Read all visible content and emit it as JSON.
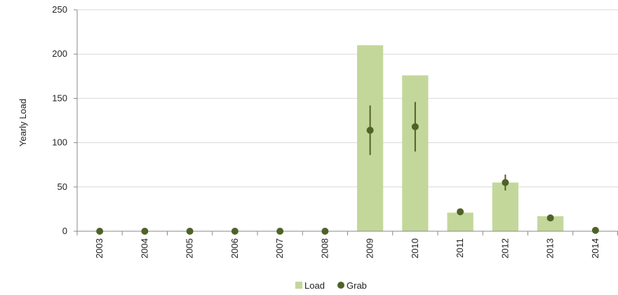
{
  "chart_data": {
    "type": "bar",
    "categories": [
      "2003",
      "2004",
      "2005",
      "2006",
      "2007",
      "2008",
      "2009",
      "2010",
      "2011",
      "2012",
      "2013",
      "2014"
    ],
    "series": [
      {
        "name": "Load",
        "type": "bar",
        "values": [
          0,
          0,
          0,
          0,
          0,
          0,
          210,
          176,
          21,
          55,
          17,
          0
        ]
      },
      {
        "name": "Grab",
        "type": "scatter",
        "values": [
          0,
          0,
          0,
          0,
          0,
          0,
          114,
          118,
          22,
          55,
          15,
          1
        ],
        "error_low": [
          null,
          null,
          null,
          null,
          null,
          null,
          86,
          90,
          19,
          46,
          14,
          null
        ],
        "error_high": [
          null,
          null,
          null,
          null,
          null,
          null,
          142,
          146,
          25,
          64,
          16,
          null
        ]
      }
    ],
    "title": "",
    "xlabel": "",
    "ylabel": "Yearly Load",
    "ylim": [
      0,
      250
    ],
    "yticks": [
      0,
      50,
      100,
      150,
      200,
      250
    ],
    "grid": true,
    "legend_position": "bottom-center",
    "colors": {
      "load_bar": "#c4d79b",
      "grab_marker": "#4f6228",
      "gridline": "#d9d9d9",
      "axis": "#888888"
    }
  }
}
